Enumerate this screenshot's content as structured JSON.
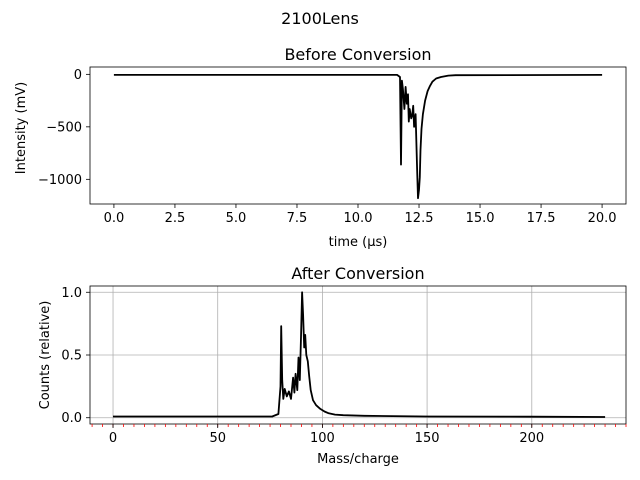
{
  "figure": {
    "suptitle": "2100Lens"
  },
  "colors": {
    "line": "#000000",
    "grid": "#b0b0b0",
    "minor_tick": "#ff0000",
    "axes": "#000000"
  },
  "chart_data": [
    {
      "type": "line",
      "title": "Before Conversion",
      "xlabel": "time (μs)",
      "ylabel": "Intensity (mV)",
      "xlim": [
        -0.98,
        20.98
      ],
      "ylim": [
        -1235,
        70
      ],
      "xticks": [
        0.0,
        2.5,
        5.0,
        7.5,
        10.0,
        12.5,
        15.0,
        17.5,
        20.0
      ],
      "xtick_labels": [
        "0.0",
        "2.5",
        "5.0",
        "7.5",
        "10.0",
        "12.5",
        "15.0",
        "17.5",
        "20.0"
      ],
      "yticks": [
        0,
        -500,
        -1000
      ],
      "ytick_labels": [
        "0",
        "−500",
        "−1000"
      ],
      "grid": false,
      "series": [
        {
          "x": [
            0.0,
            11.6,
            11.72,
            11.76,
            11.8,
            11.84,
            11.9,
            11.95,
            12.0,
            12.05,
            12.08,
            12.12,
            12.18,
            12.22,
            12.26,
            12.3,
            12.36,
            12.42,
            12.46,
            12.5,
            12.53,
            12.56,
            12.6,
            12.66,
            12.75,
            12.85,
            12.95,
            13.05,
            13.2,
            13.4,
            13.7,
            14.0,
            20.0
          ],
          "y": [
            -5,
            -5,
            -25,
            -860,
            -60,
            -140,
            -330,
            -120,
            -280,
            -190,
            -450,
            -330,
            -420,
            -390,
            -300,
            -500,
            -380,
            -900,
            -1180,
            -1100,
            -980,
            -720,
            -520,
            -380,
            -250,
            -160,
            -110,
            -70,
            -40,
            -25,
            -12,
            -8,
            -5
          ]
        }
      ]
    },
    {
      "type": "line",
      "title": "After Conversion",
      "xlabel": "Mass/charge",
      "ylabel": "Counts (relative)",
      "xlim": [
        -11,
        245
      ],
      "ylim": [
        -0.05,
        1.05
      ],
      "xticks": [
        0,
        50,
        100,
        150,
        200
      ],
      "xtick_labels": [
        "0",
        "50",
        "100",
        "150",
        "200"
      ],
      "yticks": [
        0.0,
        0.5,
        1.0
      ],
      "ytick_labels": [
        "0.0",
        "0.5",
        "1.0"
      ],
      "grid": true,
      "minor_ticks_step": 5,
      "series": [
        {
          "x": [
            0,
            76,
            79,
            80,
            80.3,
            80.8,
            81.3,
            82,
            83,
            84,
            85,
            86,
            86.6,
            87.2,
            88,
            88.6,
            89.2,
            89.8,
            90.3,
            90.8,
            91.3,
            91.8,
            92.3,
            93,
            93.7,
            94.4,
            95.5,
            97,
            99,
            101,
            103,
            106,
            110,
            120,
            150,
            200,
            235
          ],
          "y": [
            0.01,
            0.01,
            0.03,
            0.25,
            0.73,
            0.3,
            0.15,
            0.23,
            0.17,
            0.21,
            0.15,
            0.32,
            0.2,
            0.35,
            0.22,
            0.48,
            0.3,
            0.64,
            1.0,
            0.82,
            0.56,
            0.66,
            0.5,
            0.45,
            0.33,
            0.22,
            0.14,
            0.1,
            0.07,
            0.05,
            0.035,
            0.025,
            0.02,
            0.015,
            0.01,
            0.008,
            0.006
          ]
        }
      ]
    }
  ]
}
